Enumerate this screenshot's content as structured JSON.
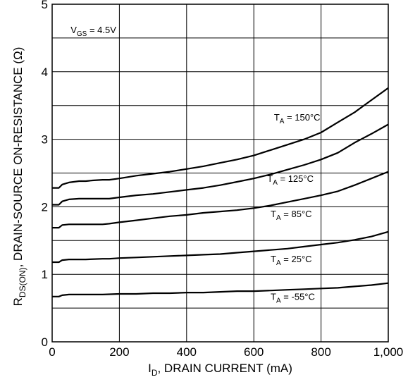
{
  "chart_data": {
    "type": "line",
    "xlabel": {
      "main": "I",
      "sub": "D",
      "rest": ", DRAIN CURRENT (mA)"
    },
    "ylabel": {
      "main": "R",
      "sub": "DS(ON)",
      "rest": ",  DRAIN-SOURCE ON-RESISTANCE (Ω)"
    },
    "xlim": [
      0,
      1000
    ],
    "ylim": [
      0,
      5
    ],
    "x_ticks": [
      0,
      200,
      400,
      600,
      800,
      1000
    ],
    "x_tick_labels": [
      "0",
      "200",
      "400",
      "600",
      "800",
      "1,000"
    ],
    "y_ticks": [
      0,
      1,
      2,
      3,
      4,
      5
    ],
    "y_tick_labels": [
      "0",
      "1",
      "2",
      "3",
      "4",
      "5"
    ],
    "x_grid": [
      200,
      400,
      600,
      800
    ],
    "y_grid": [
      0.5,
      1,
      1.5,
      2,
      2.5,
      3,
      3.5,
      4,
      4.5
    ],
    "grid": true,
    "annotation": {
      "main": "V",
      "sub": "GS",
      "rest": " = 4.5V",
      "x": 55,
      "y": 4.57
    },
    "series": [
      {
        "name": {
          "main": "T",
          "sub": "A",
          "rest": " = 150°C"
        },
        "label_x": 660,
        "label_y": 3.28,
        "x": [
          0,
          20,
          30,
          50,
          80,
          100,
          120,
          150,
          170,
          200,
          250,
          300,
          350,
          400,
          450,
          500,
          550,
          600,
          650,
          700,
          750,
          800,
          850,
          900,
          950,
          1000
        ],
        "y": [
          2.28,
          2.28,
          2.33,
          2.36,
          2.38,
          2.38,
          2.39,
          2.4,
          2.4,
          2.42,
          2.46,
          2.49,
          2.52,
          2.56,
          2.6,
          2.65,
          2.7,
          2.76,
          2.84,
          2.92,
          3.0,
          3.1,
          3.25,
          3.4,
          3.58,
          3.76
        ]
      },
      {
        "name": {
          "main": "T",
          "sub": "A",
          "rest": " = 125°C"
        },
        "label_x": 640,
        "label_y": 2.37,
        "x": [
          0,
          20,
          30,
          50,
          80,
          100,
          150,
          170,
          200,
          250,
          300,
          350,
          400,
          450,
          500,
          550,
          600,
          650,
          700,
          750,
          800,
          850,
          900,
          950,
          1000
        ],
        "y": [
          2.03,
          2.03,
          2.08,
          2.11,
          2.12,
          2.12,
          2.12,
          2.12,
          2.14,
          2.17,
          2.19,
          2.22,
          2.25,
          2.28,
          2.32,
          2.37,
          2.42,
          2.48,
          2.55,
          2.62,
          2.7,
          2.8,
          2.95,
          3.08,
          3.22
        ]
      },
      {
        "name": {
          "main": "T",
          "sub": "A",
          "rest": " = 85°C"
        },
        "label_x": 650,
        "label_y": 1.85,
        "x": [
          0,
          20,
          30,
          50,
          80,
          100,
          150,
          170,
          200,
          250,
          300,
          350,
          400,
          450,
          500,
          550,
          600,
          650,
          700,
          750,
          800,
          850,
          900,
          950,
          1000
        ],
        "y": [
          1.69,
          1.69,
          1.73,
          1.74,
          1.74,
          1.74,
          1.74,
          1.75,
          1.77,
          1.8,
          1.83,
          1.86,
          1.88,
          1.91,
          1.93,
          1.95,
          1.98,
          2.02,
          2.07,
          2.12,
          2.17,
          2.23,
          2.32,
          2.42,
          2.52
        ]
      },
      {
        "name": {
          "main": "T",
          "sub": "A",
          "rest": " = 25°C"
        },
        "label_x": 650,
        "label_y": 1.18,
        "x": [
          0,
          20,
          30,
          50,
          80,
          100,
          150,
          170,
          200,
          250,
          300,
          350,
          400,
          450,
          500,
          550,
          600,
          650,
          700,
          750,
          800,
          850,
          900,
          950,
          1000
        ],
        "y": [
          1.18,
          1.18,
          1.21,
          1.22,
          1.22,
          1.22,
          1.23,
          1.23,
          1.24,
          1.25,
          1.26,
          1.27,
          1.28,
          1.29,
          1.3,
          1.32,
          1.34,
          1.36,
          1.38,
          1.41,
          1.44,
          1.47,
          1.51,
          1.56,
          1.63
        ]
      },
      {
        "name": {
          "main": "T",
          "sub": "A",
          "rest": " = -55°C"
        },
        "label_x": 650,
        "label_y": 0.62,
        "x": [
          0,
          20,
          30,
          50,
          80,
          100,
          150,
          200,
          250,
          300,
          350,
          400,
          450,
          500,
          550,
          600,
          650,
          700,
          750,
          800,
          850,
          900,
          950,
          1000
        ],
        "y": [
          0.67,
          0.67,
          0.69,
          0.7,
          0.7,
          0.7,
          0.7,
          0.71,
          0.71,
          0.72,
          0.72,
          0.73,
          0.73,
          0.74,
          0.75,
          0.75,
          0.76,
          0.77,
          0.78,
          0.79,
          0.8,
          0.82,
          0.84,
          0.87
        ]
      }
    ]
  }
}
